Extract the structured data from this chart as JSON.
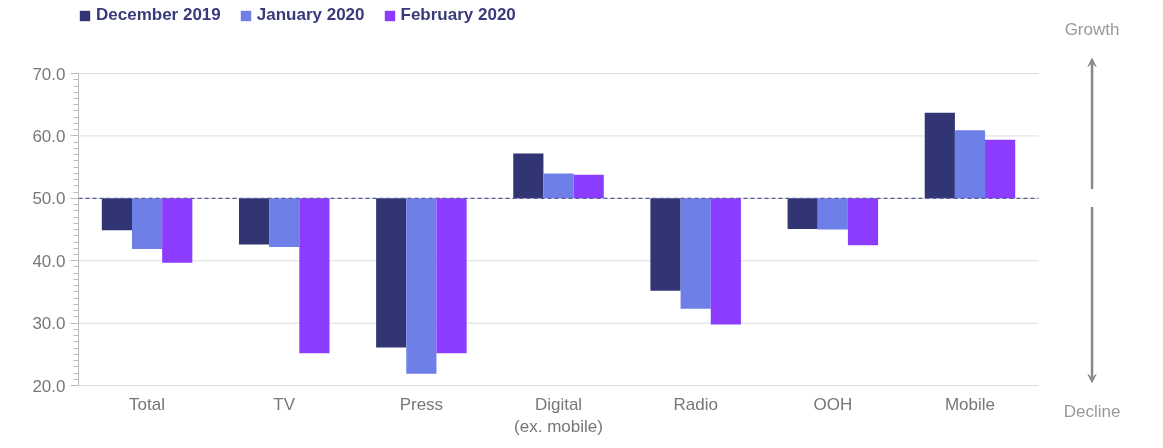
{
  "chart_data": {
    "type": "bar",
    "categories": [
      "Total",
      "TV",
      "Press",
      "Digital\n(ex. mobile)",
      "Radio",
      "OOH",
      "Mobile"
    ],
    "series": [
      {
        "name": "December 2019",
        "color": "#313574",
        "base": [
          50,
          50,
          50,
          50,
          50,
          50,
          50
        ],
        "values": [
          -5.1,
          -7.4,
          -23.9,
          7.2,
          -14.8,
          -4.9,
          13.7
        ]
      },
      {
        "name": "January 2020",
        "color": "#6e80e8",
        "base": [
          50,
          50,
          50,
          50,
          50,
          50,
          50
        ],
        "values": [
          -8.1,
          -7.8,
          -28.1,
          4.0,
          -17.7,
          -5.0,
          10.9
        ]
      },
      {
        "name": "February 2020",
        "color": "#8b3cff",
        "base": [
          50,
          50,
          50,
          50,
          50,
          50,
          50
        ],
        "values": [
          -10.3,
          -24.8,
          -24.8,
          3.8,
          -20.2,
          -7.5,
          9.4
        ]
      }
    ],
    "ylim": [
      20,
      70
    ],
    "yticks": [
      {
        "value": 20,
        "label": "20.0"
      },
      {
        "value": 30,
        "label": "30.0"
      },
      {
        "value": 40,
        "label": "40.0"
      },
      {
        "value": 50,
        "label": "50.0"
      },
      {
        "value": 60,
        "label": "60.0"
      },
      {
        "value": 70,
        "label": "70.0"
      }
    ],
    "ref_lines": [
      {
        "axis": "y",
        "value": 50,
        "color": "#5b5ba0",
        "line_style": "dashed"
      }
    ],
    "annotations": [
      "Growth",
      "Decline"
    ],
    "grid": "y",
    "legend": "top left"
  }
}
